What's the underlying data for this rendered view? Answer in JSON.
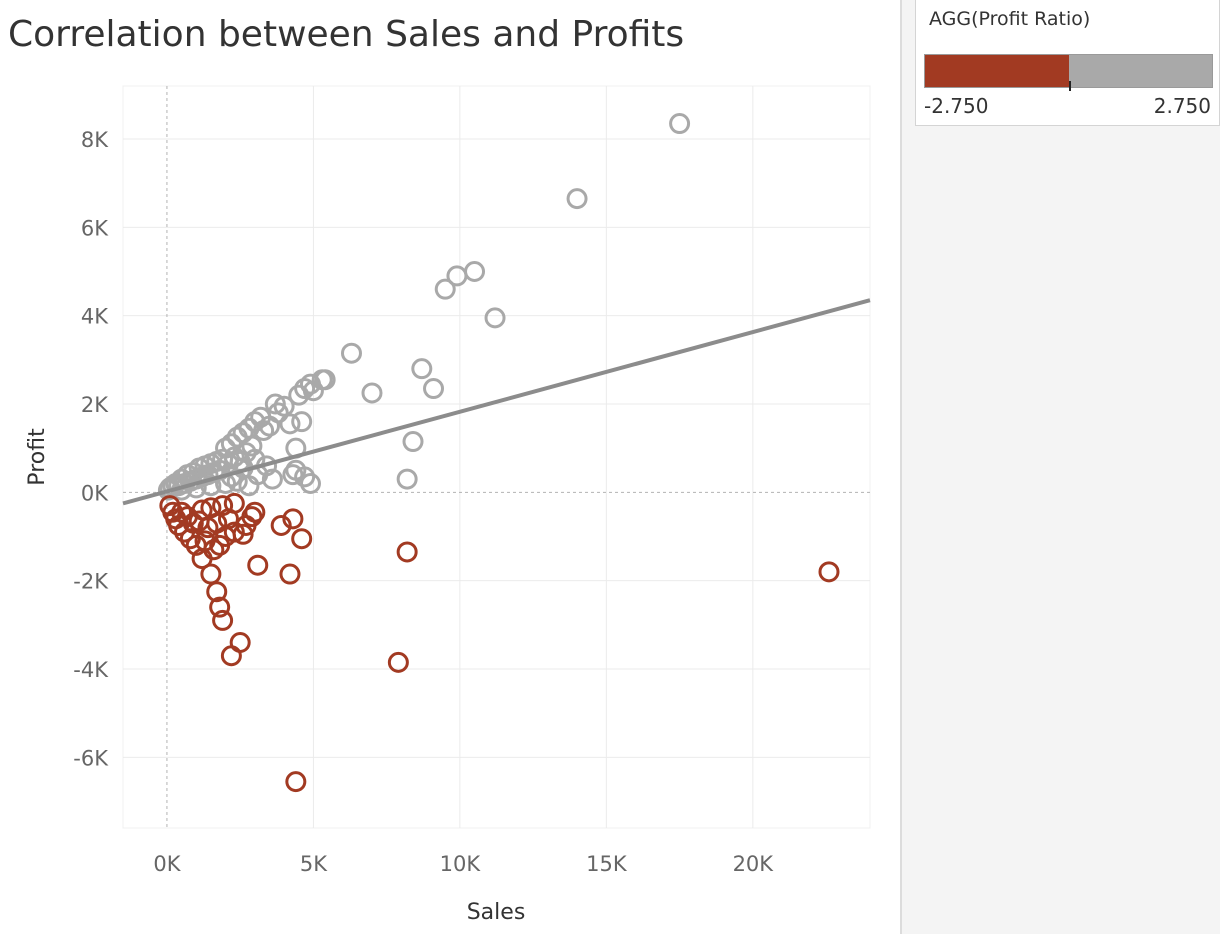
{
  "title": "Correlation between Sales and Profits",
  "legend": {
    "title": "AGG(Profit Ratio)",
    "min_label": "-2.750",
    "max_label": "2.750",
    "min_value": -2.75,
    "max_value": 2.75,
    "negative_color": "#a23a22",
    "positive_color": "#a9a9a9"
  },
  "colors": {
    "negative": "#a23a22",
    "positive": "#a9a9a9",
    "trend_line": "#8c8c8c",
    "gridline": "#ebebeb",
    "zero_line": "#b3b3b3",
    "title_text": "#333333",
    "tick_text": "#666666"
  },
  "chart_data": {
    "type": "scatter",
    "title": "Correlation between Sales and Profits",
    "xlabel": "Sales",
    "ylabel": "Profit",
    "xlim": [
      -1500,
      24000
    ],
    "ylim": [
      -7600,
      9200
    ],
    "x_ticks": [
      0,
      5000,
      10000,
      15000,
      20000
    ],
    "x_tick_labels": [
      "0K",
      "5K",
      "10K",
      "15K",
      "20K"
    ],
    "y_ticks": [
      -6000,
      -4000,
      -2000,
      0,
      2000,
      4000,
      6000,
      8000
    ],
    "y_tick_labels": [
      "-6K",
      "-4K",
      "-2K",
      "0K",
      "2K",
      "4K",
      "6K",
      "8K"
    ],
    "grid": true,
    "marker": "hollow-circle",
    "color_field": "AGG(Profit Ratio)",
    "trend_line": {
      "start": [
        -1500,
        -250
      ],
      "end": [
        24000,
        4350
      ]
    },
    "series": [
      {
        "color": "#a9a9a9",
        "x": [
          17500,
          14000,
          10500,
          9900,
          9500,
          11200,
          6300,
          8700,
          9100,
          7000,
          5400,
          4900,
          4700,
          4500,
          5000,
          5300,
          8400,
          4200,
          4600,
          4400,
          4300,
          3700,
          3200,
          4000,
          3500,
          3800,
          4400,
          4700,
          4900,
          8200,
          3000,
          2800,
          2600,
          2400,
          2200,
          2000,
          2900,
          3300,
          3000,
          2700,
          2500,
          2300,
          2100,
          1900,
          1700,
          1500,
          1300,
          1100,
          900,
          700,
          500,
          300,
          200,
          100,
          50,
          1800,
          1600,
          1400,
          1200,
          1000,
          800,
          600,
          400,
          2600,
          3100,
          3600,
          3400,
          2000,
          1500,
          1000,
          500,
          2800,
          2200,
          2400
        ],
        "y": [
          8350,
          6650,
          5000,
          4900,
          4600,
          3950,
          3150,
          2800,
          2350,
          2250,
          2550,
          2450,
          2350,
          2200,
          2300,
          2550,
          1150,
          1550,
          1600,
          1000,
          400,
          2000,
          1700,
          1950,
          1500,
          1800,
          500,
          350,
          200,
          300,
          1600,
          1450,
          1350,
          1250,
          1100,
          1000,
          1050,
          1400,
          750,
          900,
          700,
          800,
          650,
          750,
          700,
          650,
          600,
          550,
          450,
          400,
          300,
          200,
          150,
          100,
          50,
          500,
          450,
          400,
          350,
          300,
          250,
          200,
          150,
          550,
          400,
          300,
          600,
          200,
          150,
          100,
          50,
          150,
          350,
          250
        ]
      },
      {
        "color": "#a23a22",
        "x": [
          22600,
          8200,
          7900,
          4400,
          4200,
          4300,
          4600,
          3900,
          3100,
          3000,
          2600,
          2500,
          2200,
          1900,
          1800,
          1700,
          1500,
          1200,
          1000,
          800,
          600,
          400,
          300,
          200,
          100,
          1300,
          1600,
          1800,
          2000,
          2300,
          2700,
          2900,
          1100,
          900,
          700,
          500,
          1400,
          1700,
          2100,
          1200,
          1500,
          1900,
          2300
        ],
        "y": [
          -1800,
          -1350,
          -3850,
          -6550,
          -1850,
          -600,
          -1050,
          -750,
          -1650,
          -450,
          -950,
          -3400,
          -3700,
          -2900,
          -2600,
          -2250,
          -1850,
          -1500,
          -1200,
          -1050,
          -900,
          -750,
          -600,
          -450,
          -300,
          -1100,
          -1300,
          -1200,
          -1000,
          -900,
          -750,
          -550,
          -650,
          -700,
          -550,
          -450,
          -800,
          -700,
          -600,
          -400,
          -350,
          -300,
          -250
        ]
      }
    ]
  }
}
